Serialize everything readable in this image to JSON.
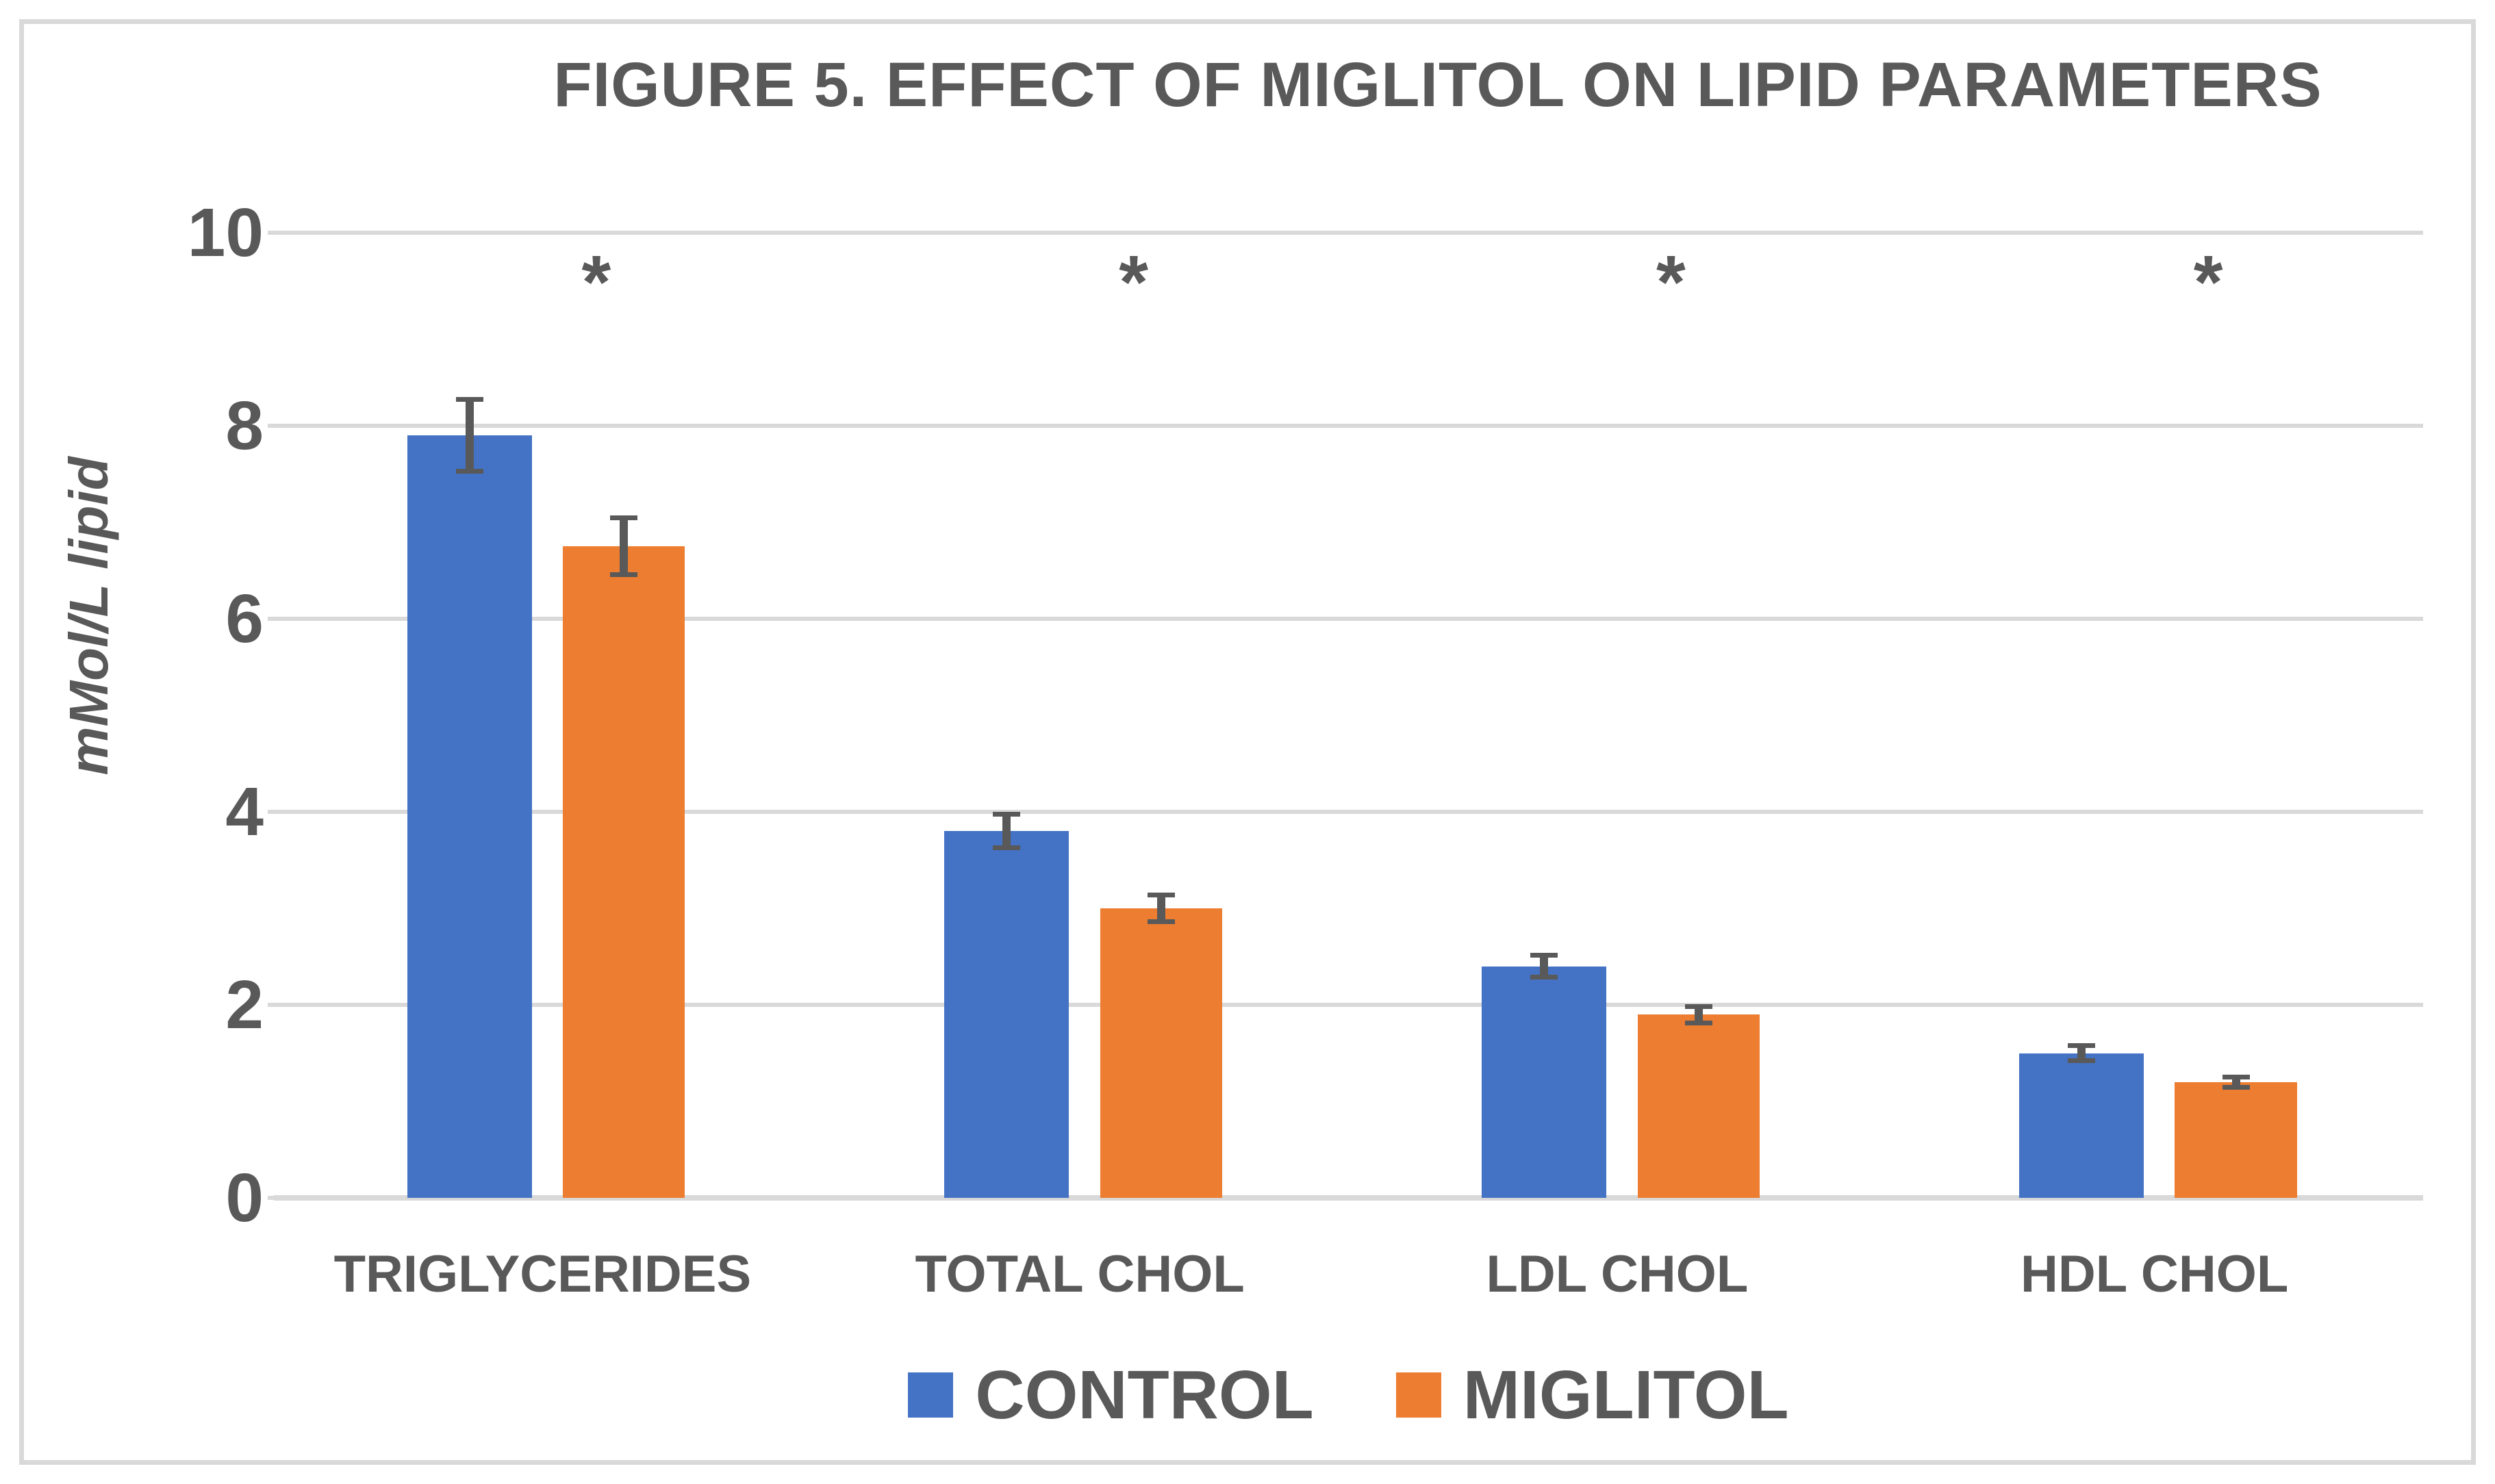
{
  "chart_data": {
    "type": "bar",
    "title": "FIGURE 5. EFFECT OF MIGLITOL ON LIPID PARAMETERS",
    "ylabel": "mMol/L lipid",
    "xlabel": "",
    "ylim": [
      0,
      10
    ],
    "yticks": [
      0,
      2,
      4,
      6,
      8,
      10
    ],
    "grid": true,
    "legend_position": "bottom",
    "categories": [
      "TRIGLYCERIDES",
      "TOTAL CHOL",
      "LDL CHOL",
      "HDL CHOL"
    ],
    "series": [
      {
        "name": "CONTROL",
        "color": "#4472C4",
        "values": [
          7.9,
          3.8,
          2.4,
          1.5
        ],
        "errors": [
          0.4,
          0.2,
          0.14,
          0.1
        ]
      },
      {
        "name": "MIGLITOL",
        "color": "#ED7D31",
        "values": [
          6.75,
          3.0,
          1.9,
          1.2
        ],
        "errors": [
          0.32,
          0.16,
          0.11,
          0.08
        ]
      }
    ],
    "significance": [
      "*",
      "*",
      "*",
      "*"
    ]
  },
  "colors": {
    "text": "#595959",
    "grid": "#D9D9D9",
    "error_bar": "#595959",
    "background": "#FFFFFF"
  }
}
